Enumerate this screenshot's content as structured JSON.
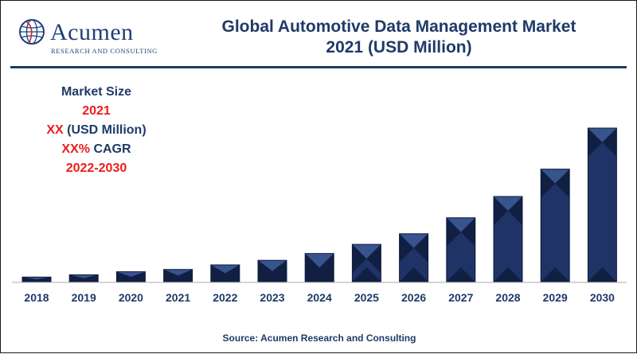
{
  "brand": {
    "name": "Acumen",
    "tagline": "RESEARCH AND CONSULTING"
  },
  "title": {
    "line1": "Global Automotive Data Management Market",
    "line2": "2021 (USD Million)"
  },
  "info_box": {
    "label": "Market Size",
    "year": "2021",
    "value_xx": "XX",
    "value_unit": " (USD Million)",
    "cagr_xx": "XX%",
    "cagr_label": " CAGR",
    "period": "2022-2030"
  },
  "source": "Source: Acumen Research and Consulting",
  "colors": {
    "bar": "#1f3366",
    "bar_light": "#3d5a96",
    "bar_dark": "#0f1c3d",
    "title": "#1f3a68",
    "highlight": "#ee1c1c"
  },
  "chart_data": {
    "type": "bar",
    "categories": [
      "2018",
      "2019",
      "2020",
      "2021",
      "2022",
      "2023",
      "2024",
      "2025",
      "2026",
      "2027",
      "2028",
      "2029",
      "2030"
    ],
    "values": [
      3,
      4.5,
      6.5,
      8,
      11,
      14,
      18.5,
      24.5,
      31.5,
      42,
      56,
      74,
      101
    ],
    "xlabel": "",
    "ylabel": "",
    "ylim": [
      0,
      101
    ],
    "grid": false,
    "legend": "none"
  }
}
